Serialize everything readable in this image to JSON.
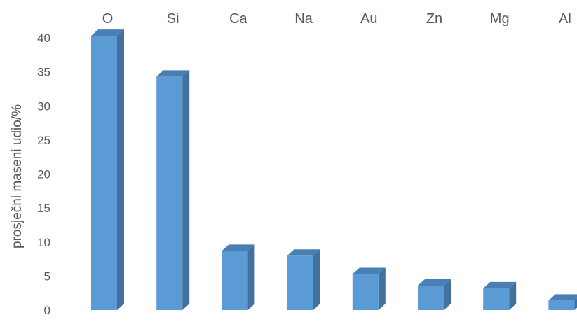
{
  "chart_data": {
    "type": "bar",
    "style": "3d-column",
    "categories": [
      "O",
      "Si",
      "Ca",
      "Na",
      "Au",
      "Zn",
      "Mg",
      "Al"
    ],
    "values": [
      40.3,
      34.3,
      8.7,
      8.0,
      5.3,
      3.6,
      3.2,
      1.4
    ],
    "ylabel": "prosječni maseni udio/%",
    "ylim": [
      0,
      40
    ],
    "yticks": [
      0,
      5,
      10,
      15,
      20,
      25,
      30,
      35,
      40
    ],
    "category_axis_position": "top",
    "grid": false,
    "legend": "none",
    "colors": {
      "bar_front": "#5b9bd5",
      "bar_side": "#41719c",
      "bar_top": "#4a7fb5",
      "text": "#595959"
    }
  }
}
